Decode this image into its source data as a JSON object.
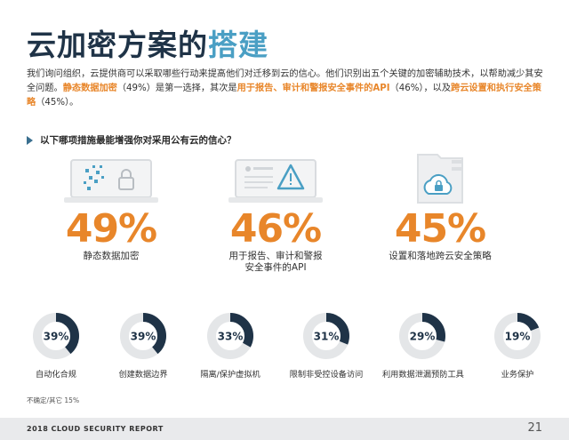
{
  "title_main": "云加密方案的",
  "title_accent": "搭建",
  "intro": {
    "p1": "我们询问组织，云提供商可以采取哪些行动来提高他们对迁移到云的信心。他们识别出五个关键的加密辅助技术，以帮助减少其安全问题。",
    "h1": "静态数据加密",
    "p2": "（49%）是第一选择，其次是",
    "h2": "用于报告、审计和警报安全事件的API",
    "p3": "（46%），以及",
    "h3": "跨云设置和执行安全策略",
    "p4": "（45%）。"
  },
  "question": "以下哪项措施最能增强你对采用公有云的信心？",
  "stats": [
    {
      "pct": "49%",
      "label_l1": "静态数据加密",
      "label_l2": "",
      "icon": "laptop-lock-icon"
    },
    {
      "pct": "46%",
      "label_l1": "用于报告、审计和警报",
      "label_l2": "安全事件的API",
      "icon": "laptop-warning-icon"
    },
    {
      "pct": "45%",
      "label_l1": "设置和落地跨云安全策略",
      "label_l2": "",
      "icon": "cloud-lock-icon"
    }
  ],
  "donuts": [
    {
      "label": "39%",
      "value": 39,
      "caption": "自动化合规"
    },
    {
      "label": "39%",
      "value": 39,
      "caption": "创建数据边界"
    },
    {
      "label": "33%",
      "value": 33,
      "caption": "隔离/保护虚拟机"
    },
    {
      "label": "31%",
      "value": 31,
      "caption": "限制非受控设备访问"
    },
    {
      "label": "29%",
      "value": 29,
      "caption": "利用数据泄漏预防工具"
    },
    {
      "label": "19%",
      "value": 19,
      "caption": "业务保护"
    }
  ],
  "note": "不确定/其它 15%",
  "footer": {
    "report": "2018 CLOUD SECURITY REPORT",
    "page": "21"
  },
  "colors": {
    "accent": "#e8862a",
    "navy": "#1f3347",
    "blue": "#4a9fc4",
    "ring_bg": "#e4e6e8"
  }
}
